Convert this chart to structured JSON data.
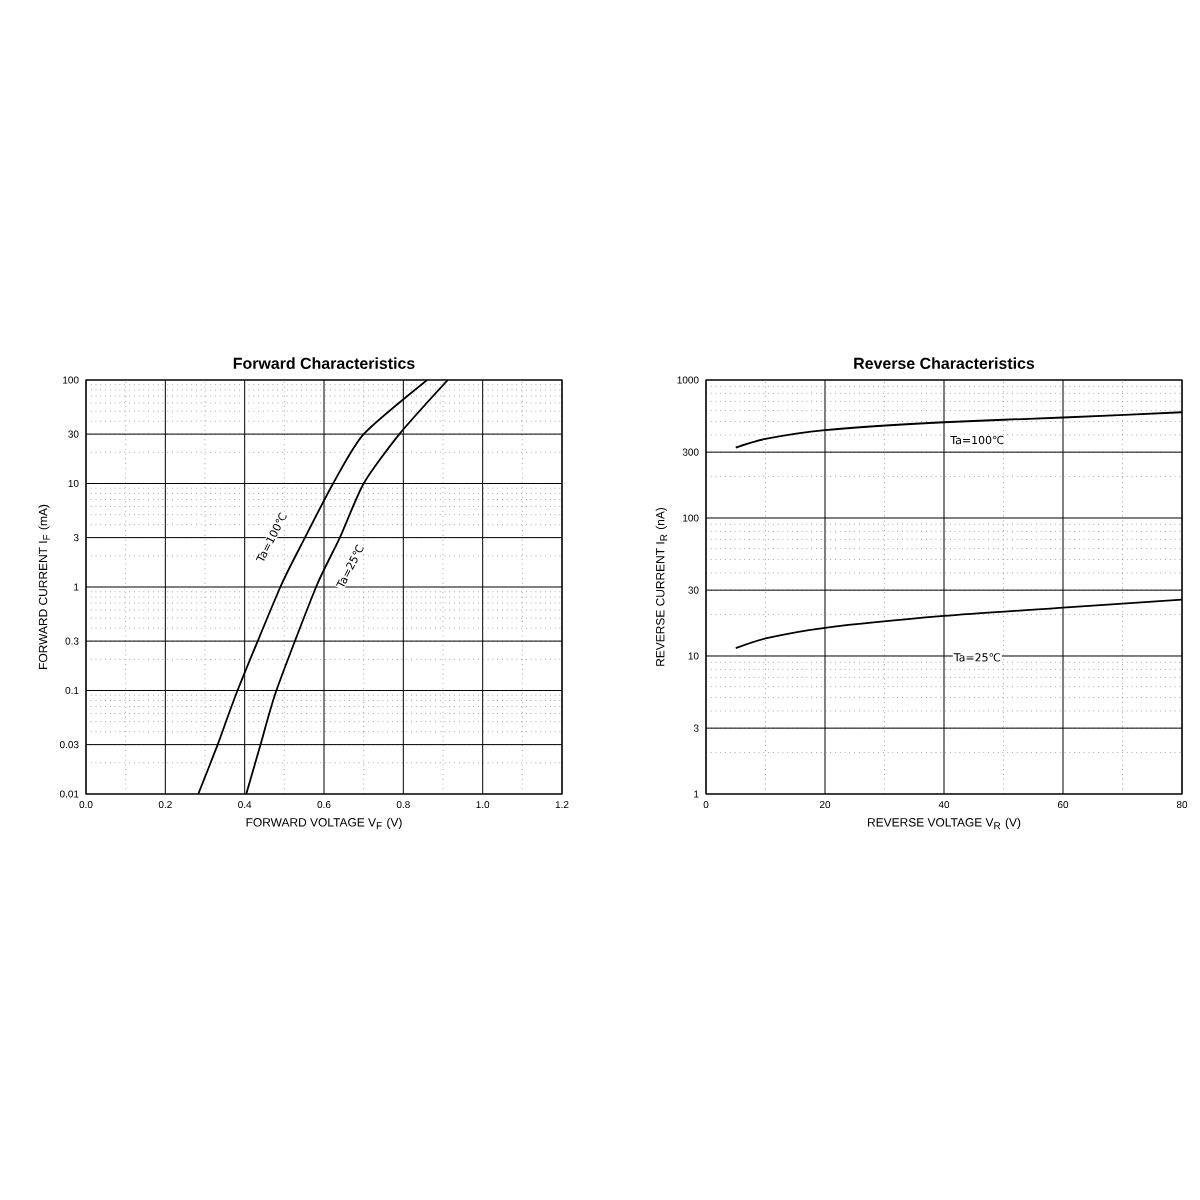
{
  "chart_data": [
    {
      "type": "line",
      "title": "Forward    Characteristics",
      "xlabel": "FORWARD VOLTAGE    V$_{F}$    (V)",
      "ylabel": "FORWARD CURRENT    I$_{F}$    (mA)",
      "log": "y",
      "grid": true,
      "xlim": [
        0,
        1.2
      ],
      "ylim": [
        0.01,
        100
      ],
      "xticks": [
        {
          "value": 0,
          "label": "0.0"
        },
        0.2,
        0.4,
        0.6,
        0.8,
        {
          "value": 1,
          "label": "1.0"
        },
        1.2
      ],
      "yticks": [
        0.01,
        0.03,
        0.1,
        0.3,
        1,
        3,
        10,
        30,
        100
      ],
      "series": [
        {
          "color": "#000000",
          "x": [
            0.283,
            0.332,
            0.382,
            0.49,
            0.552,
            0.623,
            0.7,
            0.86
          ],
          "values": [
            0.01,
            0.03,
            0.1,
            1,
            3,
            10,
            30,
            100
          ]
        },
        {
          "color": "#000000",
          "x": [
            0.404,
            0.44,
            0.48,
            0.58,
            0.64,
            0.7,
            0.79,
            0.912
          ],
          "values": [
            0.01,
            0.03,
            0.1,
            1,
            3,
            10,
            30,
            100
          ]
        }
      ],
      "annotations": [
        "Ta=100℃",
        "Ta=25℃"
      ]
    },
    {
      "type": "line",
      "title": "Reverse    Characteristics",
      "xlabel": "REVERSE VOLTAGE    V$_{R}$    (V)",
      "ylabel": "REVERSE CURRENT    I$_{R}$    (nA)",
      "log": "y",
      "grid": true,
      "xlim": [
        0,
        80
      ],
      "ylim": [
        1,
        1000
      ],
      "xticks": [
        0,
        20,
        40,
        60,
        80
      ],
      "yticks": [
        1,
        3,
        10,
        30,
        100,
        300,
        1000
      ],
      "series": [
        {
          "color": "#000000",
          "x": [
            5,
            10,
            20,
            40,
            60,
            80
          ],
          "values": [
            324,
            374,
            433,
            494,
            535,
            584
          ]
        },
        {
          "color": "#000000",
          "x": [
            5,
            10,
            20,
            40,
            60,
            80
          ],
          "values": [
            11.4,
            13.4,
            16,
            19.5,
            22.4,
            25.6
          ]
        }
      ],
      "annotations": [
        "Ta=100℃",
        "Ta=25℃"
      ]
    }
  ]
}
